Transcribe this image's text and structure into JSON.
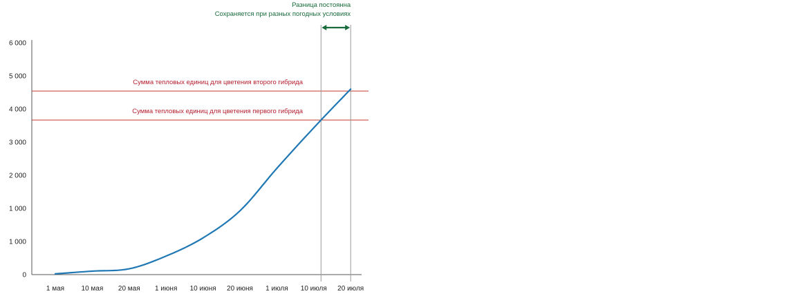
{
  "chart_data": {
    "type": "line",
    "title": "",
    "xlabel": "",
    "ylabel": "",
    "y_ticks": [
      "6 000",
      "5 000",
      "4 000",
      "3 000",
      "2 000",
      "1 000",
      "1 000",
      "0"
    ],
    "x_ticks": [
      "1 мая",
      "10 мая",
      "20 мая",
      "1 июня",
      "10 июня",
      "20 июня",
      "1 июля",
      "10 июля",
      "20 июля"
    ],
    "series": [
      {
        "color": "#1f77b4",
        "points": [
          {
            "x": "1 мая",
            "y": 20
          },
          {
            "x": "10 мая",
            "y": 90
          },
          {
            "x": "20 мая",
            "y": 150
          },
          {
            "x": "1 июня",
            "y": 480
          },
          {
            "x": "10 июня",
            "y": 950
          },
          {
            "x": "20 июня",
            "y": 1650
          },
          {
            "x": "1 июля",
            "y": 2750
          },
          {
            "x": "10 июля",
            "y": 3800
          },
          {
            "x": "20 июля",
            "y": 4800
          }
        ]
      }
    ],
    "thresholds": [
      {
        "label": "Сумма тепловых единиц для цветения второго гибрида",
        "value": 4750,
        "color": "#c0392b"
      },
      {
        "label": "Сумма тепловых единиц для цветения первого гибрида",
        "value": 4000,
        "color": "#c0392b"
      }
    ],
    "annotation": {
      "title": "Разница постоянна",
      "subtitle": "Сохраняется при разных погодных условиях",
      "color": "#1a6b3c"
    },
    "ylim": [
      0,
      6000
    ],
    "grid": false
  }
}
